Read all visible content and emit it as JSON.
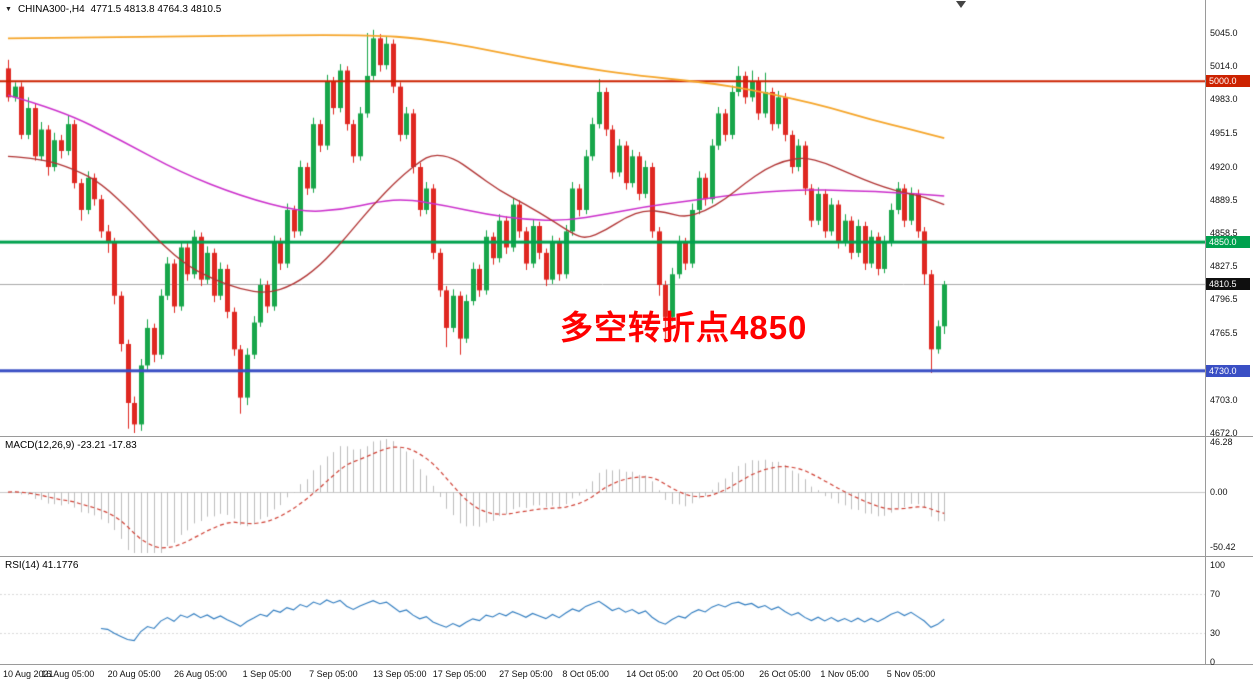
{
  "header": {
    "symbol_period": "CHINA300-,H4",
    "ohlc": "4771.5 4813.8 4764.3 4810.5",
    "open": "4771.5",
    "high": "4813.8",
    "low": "4764.3",
    "close": "4810.5"
  },
  "annotation": {
    "text": "多空转折点4850",
    "color": "#ff0000"
  },
  "colors": {
    "background": "#ffffff",
    "up": "#17a64a",
    "down": "#df2721",
    "macd_hist": "#bdbdbd",
    "macd_signal": "#cf3f33",
    "rsi_line": "#2e7bbf",
    "separator": "#9a9a9a",
    "axis_text": "#111111"
  },
  "chart_data": {
    "type": "candlestick",
    "symbol": "CHINA300-",
    "period": "H4",
    "title": "CHINA300- H4 candlestick chart with MACD and RSI",
    "main_axis": {
      "price_top": 5045.0,
      "price_bottom": 4672.0,
      "ticks": [
        {
          "v": 5045.0,
          "label": "5045.0"
        },
        {
          "v": 5014.0,
          "label": "5014.0"
        },
        {
          "v": 4983.0,
          "label": "4983.0"
        },
        {
          "v": 4951.5,
          "label": "4951.5"
        },
        {
          "v": 4920.0,
          "label": "4920.0"
        },
        {
          "v": 4889.5,
          "label": "4889.5"
        },
        {
          "v": 4858.5,
          "label": "4858.5"
        },
        {
          "v": 4827.5,
          "label": "4827.5"
        },
        {
          "v": 4796.5,
          "label": "4796.5"
        },
        {
          "v": 4765.5,
          "label": "4765.5"
        },
        {
          "v": 4703.0,
          "label": "4703.0"
        },
        {
          "v": 4672.0,
          "label": "4672.0"
        }
      ]
    },
    "hlines": [
      {
        "price": 5000.0,
        "label": "5000.0",
        "color": "#cc2200",
        "width": 2
      },
      {
        "price": 4850.0,
        "label": "4850.0",
        "color": "#00a14e",
        "width": 3
      },
      {
        "price": 4730.0,
        "label": "4730.0",
        "color": "#3a4fc4",
        "width": 3
      }
    ],
    "current_price": {
      "value": 4810.5,
      "label": "4810.5",
      "line_color": "#a8a8a8",
      "badge_bg": "#0f0f0f"
    },
    "x_labels": [
      {
        "label": "10 Aug 2021",
        "i": 0
      },
      {
        "label": "16 Aug 05:00",
        "i": 9
      },
      {
        "label": "20 Aug 05:00",
        "i": 19
      },
      {
        "label": "26 Aug 05:00",
        "i": 29
      },
      {
        "label": "1 Sep 05:00",
        "i": 39
      },
      {
        "label": "7 Sep 05:00",
        "i": 49
      },
      {
        "label": "13 Sep 05:00",
        "i": 59
      },
      {
        "label": "17 Sep 05:00",
        "i": 68
      },
      {
        "label": "27 Sep 05:00",
        "i": 78
      },
      {
        "label": "8 Oct 05:00",
        "i": 87
      },
      {
        "label": "14 Oct 05:00",
        "i": 97
      },
      {
        "label": "20 Oct 05:00",
        "i": 107
      },
      {
        "label": "26 Oct 05:00",
        "i": 117
      },
      {
        "label": "1 Nov 05:00",
        "i": 126
      },
      {
        "label": "5 Nov 05:00",
        "i": 136
      }
    ],
    "candles": [
      [
        5012,
        5020,
        4981,
        4985
      ],
      [
        4985,
        4999,
        4981,
        4995
      ],
      [
        4995,
        4999,
        4946,
        4950
      ],
      [
        4950,
        4985,
        4946,
        4975
      ],
      [
        4975,
        4979,
        4926,
        4930
      ],
      [
        4930,
        4962,
        4926,
        4955
      ],
      [
        4955,
        4959,
        4912,
        4920
      ],
      [
        4920,
        4952,
        4916,
        4945
      ],
      [
        4945,
        4950,
        4928,
        4935
      ],
      [
        4935,
        4968,
        4931,
        4960
      ],
      [
        4960,
        4964,
        4900,
        4905
      ],
      [
        4905,
        4909,
        4870,
        4880
      ],
      [
        4880,
        4916,
        4876,
        4910
      ],
      [
        4910,
        4914,
        4884,
        4890
      ],
      [
        4890,
        4894,
        4854,
        4860
      ],
      [
        4860,
        4866,
        4840,
        4850
      ],
      [
        4850,
        4854,
        4792,
        4800
      ],
      [
        4800,
        4804,
        4748,
        4755
      ],
      [
        4755,
        4759,
        4676,
        4700
      ],
      [
        4700,
        4706,
        4672,
        4680
      ],
      [
        4680,
        4741,
        4674,
        4735
      ],
      [
        4735,
        4778,
        4731,
        4770
      ],
      [
        4770,
        4774,
        4738,
        4745
      ],
      [
        4745,
        4806,
        4741,
        4800
      ],
      [
        4800,
        4836,
        4796,
        4830
      ],
      [
        4830,
        4834,
        4784,
        4790
      ],
      [
        4790,
        4851,
        4786,
        4845
      ],
      [
        4845,
        4849,
        4814,
        4820
      ],
      [
        4820,
        4861,
        4816,
        4855
      ],
      [
        4855,
        4859,
        4809,
        4815
      ],
      [
        4815,
        4846,
        4811,
        4840
      ],
      [
        4840,
        4844,
        4794,
        4800
      ],
      [
        4800,
        4831,
        4796,
        4825
      ],
      [
        4825,
        4829,
        4779,
        4785
      ],
      [
        4785,
        4789,
        4744,
        4750
      ],
      [
        4750,
        4754,
        4690,
        4705
      ],
      [
        4705,
        4751,
        4698,
        4745
      ],
      [
        4745,
        4781,
        4741,
        4775
      ],
      [
        4775,
        4816,
        4771,
        4810
      ],
      [
        4810,
        4814,
        4784,
        4790
      ],
      [
        4790,
        4856,
        4786,
        4850
      ],
      [
        4850,
        4854,
        4824,
        4830
      ],
      [
        4830,
        4886,
        4826,
        4880
      ],
      [
        4880,
        4884,
        4854,
        4860
      ],
      [
        4860,
        4926,
        4856,
        4920
      ],
      [
        4920,
        4924,
        4894,
        4900
      ],
      [
        4900,
        4966,
        4896,
        4960
      ],
      [
        4960,
        4964,
        4934,
        4940
      ],
      [
        4940,
        5006,
        4936,
        5000
      ],
      [
        5000,
        5004,
        4969,
        4975
      ],
      [
        4975,
        5016,
        4971,
        5010
      ],
      [
        5010,
        5014,
        4954,
        4960
      ],
      [
        4960,
        4964,
        4924,
        4930
      ],
      [
        4930,
        4976,
        4926,
        4970
      ],
      [
        4970,
        5045,
        4966,
        5005
      ],
      [
        5005,
        5048,
        5001,
        5040
      ],
      [
        5040,
        5044,
        5009,
        5015
      ],
      [
        5015,
        5042,
        5011,
        5035
      ],
      [
        5035,
        5039,
        4989,
        4995
      ],
      [
        4995,
        4999,
        4944,
        4950
      ],
      [
        4950,
        4976,
        4946,
        4970
      ],
      [
        4970,
        4974,
        4914,
        4920
      ],
      [
        4920,
        4924,
        4874,
        4880
      ],
      [
        4880,
        4906,
        4876,
        4900
      ],
      [
        4900,
        4904,
        4834,
        4840
      ],
      [
        4840,
        4844,
        4799,
        4805
      ],
      [
        4805,
        4809,
        4752,
        4770
      ],
      [
        4770,
        4806,
        4766,
        4800
      ],
      [
        4800,
        4804,
        4745,
        4760
      ],
      [
        4760,
        4801,
        4756,
        4795
      ],
      [
        4795,
        4831,
        4791,
        4825
      ],
      [
        4825,
        4829,
        4799,
        4805
      ],
      [
        4805,
        4861,
        4801,
        4855
      ],
      [
        4855,
        4859,
        4829,
        4835
      ],
      [
        4835,
        4876,
        4831,
        4870
      ],
      [
        4870,
        4874,
        4839,
        4845
      ],
      [
        4845,
        4891,
        4841,
        4885
      ],
      [
        4885,
        4889,
        4854,
        4860
      ],
      [
        4860,
        4864,
        4824,
        4830
      ],
      [
        4830,
        4871,
        4826,
        4865
      ],
      [
        4865,
        4869,
        4834,
        4840
      ],
      [
        4840,
        4844,
        4809,
        4815
      ],
      [
        4815,
        4856,
        4811,
        4850
      ],
      [
        4850,
        4854,
        4814,
        4820
      ],
      [
        4820,
        4866,
        4816,
        4860
      ],
      [
        4860,
        4906,
        4856,
        4900
      ],
      [
        4900,
        4904,
        4874,
        4880
      ],
      [
        4880,
        4936,
        4876,
        4930
      ],
      [
        4930,
        4966,
        4926,
        4960
      ],
      [
        4960,
        5002,
        4956,
        4990
      ],
      [
        4990,
        4994,
        4949,
        4955
      ],
      [
        4955,
        4959,
        4909,
        4915
      ],
      [
        4915,
        4946,
        4911,
        4940
      ],
      [
        4940,
        4944,
        4899,
        4905
      ],
      [
        4905,
        4936,
        4901,
        4930
      ],
      [
        4930,
        4934,
        4889,
        4895
      ],
      [
        4895,
        4926,
        4891,
        4920
      ],
      [
        4920,
        4924,
        4854,
        4860
      ],
      [
        4860,
        4864,
        4800,
        4810
      ],
      [
        4810,
        4814,
        4757,
        4780
      ],
      [
        4780,
        4826,
        4776,
        4820
      ],
      [
        4820,
        4856,
        4816,
        4850
      ],
      [
        4850,
        4854,
        4824,
        4830
      ],
      [
        4830,
        4886,
        4826,
        4880
      ],
      [
        4880,
        4916,
        4876,
        4910
      ],
      [
        4910,
        4914,
        4884,
        4890
      ],
      [
        4890,
        4946,
        4886,
        4940
      ],
      [
        4940,
        4976,
        4936,
        4970
      ],
      [
        4970,
        4974,
        4944,
        4950
      ],
      [
        4950,
        4996,
        4946,
        4990
      ],
      [
        4990,
        5014,
        4986,
        5005
      ],
      [
        5005,
        5009,
        4979,
        4985
      ],
      [
        4985,
        5010,
        4981,
        5000
      ],
      [
        5000,
        5004,
        4964,
        4970
      ],
      [
        4970,
        5008,
        4966,
        4990
      ],
      [
        4990,
        4994,
        4954,
        4960
      ],
      [
        4960,
        4991,
        4956,
        4985
      ],
      [
        4985,
        4989,
        4944,
        4950
      ],
      [
        4950,
        4954,
        4914,
        4920
      ],
      [
        4920,
        4946,
        4916,
        4940
      ],
      [
        4940,
        4944,
        4894,
        4900
      ],
      [
        4900,
        4904,
        4864,
        4870
      ],
      [
        4870,
        4901,
        4866,
        4895
      ],
      [
        4895,
        4899,
        4854,
        4860
      ],
      [
        4860,
        4891,
        4856,
        4885
      ],
      [
        4885,
        4889,
        4844,
        4850
      ],
      [
        4850,
        4876,
        4846,
        4870
      ],
      [
        4870,
        4874,
        4834,
        4840
      ],
      [
        4840,
        4871,
        4836,
        4865
      ],
      [
        4865,
        4869,
        4824,
        4830
      ],
      [
        4830,
        4861,
        4826,
        4855
      ],
      [
        4855,
        4859,
        4819,
        4825
      ],
      [
        4825,
        4856,
        4821,
        4850
      ],
      [
        4850,
        4886,
        4846,
        4880
      ],
      [
        4880,
        4906,
        4876,
        4900
      ],
      [
        4900,
        4904,
        4864,
        4870
      ],
      [
        4870,
        4901,
        4866,
        4895
      ],
      [
        4895,
        4899,
        4854,
        4860
      ],
      [
        4860,
        4864,
        4810,
        4820
      ],
      [
        4820,
        4824,
        4728,
        4750
      ],
      [
        4750,
        4777,
        4746,
        4771.5
      ],
      [
        4771.5,
        4813.8,
        4764.3,
        4810.5
      ]
    ],
    "moving_averages": [
      {
        "name": "ma-slow",
        "color": "#f5a52a",
        "width": 1.8,
        "points": [
          [
            0,
            5040
          ],
          [
            20,
            5041
          ],
          [
            40,
            5043
          ],
          [
            55,
            5043
          ],
          [
            62,
            5040
          ],
          [
            70,
            5032
          ],
          [
            78,
            5022
          ],
          [
            86,
            5013
          ],
          [
            94,
            5006
          ],
          [
            100,
            5002
          ],
          [
            106,
            4998
          ],
          [
            112,
            4992
          ],
          [
            118,
            4984
          ],
          [
            124,
            4975
          ],
          [
            130,
            4964
          ],
          [
            136,
            4955
          ],
          [
            141,
            4947
          ]
        ]
      },
      {
        "name": "ma-medium",
        "color": "#cb2ecb",
        "width": 1.5,
        "points": [
          [
            0,
            4987
          ],
          [
            8,
            4973
          ],
          [
            17,
            4945
          ],
          [
            26,
            4915
          ],
          [
            35,
            4893
          ],
          [
            44,
            4878
          ],
          [
            50,
            4880
          ],
          [
            56,
            4888
          ],
          [
            60,
            4890
          ],
          [
            66,
            4884
          ],
          [
            72,
            4876
          ],
          [
            78,
            4871
          ],
          [
            84,
            4870
          ],
          [
            90,
            4876
          ],
          [
            96,
            4883
          ],
          [
            102,
            4888
          ],
          [
            108,
            4893
          ],
          [
            114,
            4897
          ],
          [
            120,
            4899
          ],
          [
            126,
            4898
          ],
          [
            132,
            4897
          ],
          [
            141,
            4893
          ]
        ]
      },
      {
        "name": "ma-fast",
        "color": "#b03333",
        "width": 1.3,
        "points": [
          [
            0,
            4930
          ],
          [
            5,
            4928
          ],
          [
            10,
            4918
          ],
          [
            14,
            4905
          ],
          [
            19,
            4876
          ],
          [
            23,
            4849
          ],
          [
            27,
            4828
          ],
          [
            31,
            4815
          ],
          [
            35,
            4806
          ],
          [
            39,
            4802
          ],
          [
            43,
            4810
          ],
          [
            47,
            4828
          ],
          [
            51,
            4855
          ],
          [
            55,
            4885
          ],
          [
            59,
            4910
          ],
          [
            62,
            4925
          ],
          [
            64,
            4932
          ],
          [
            67,
            4929
          ],
          [
            70,
            4916
          ],
          [
            74,
            4898
          ],
          [
            78,
            4885
          ],
          [
            82,
            4870
          ],
          [
            85,
            4858
          ],
          [
            87,
            4853
          ],
          [
            90,
            4861
          ],
          [
            93,
            4873
          ],
          [
            96,
            4880
          ],
          [
            99,
            4878
          ],
          [
            102,
            4873
          ],
          [
            105,
            4879
          ],
          [
            108,
            4890
          ],
          [
            111,
            4905
          ],
          [
            114,
            4918
          ],
          [
            117,
            4926
          ],
          [
            120,
            4929
          ],
          [
            123,
            4924
          ],
          [
            126,
            4916
          ],
          [
            129,
            4908
          ],
          [
            132,
            4901
          ],
          [
            135,
            4896
          ],
          [
            138,
            4892
          ],
          [
            141,
            4885
          ]
        ]
      }
    ],
    "macd": {
      "label": "MACD(12,26,9) -23.21 -17.83",
      "params": [
        12,
        26,
        9
      ],
      "value": -23.21,
      "signal_value": -17.83,
      "max": 46.28,
      "min": -50.42,
      "ticks": [
        {
          "v": 46.28,
          "label": "46.28"
        },
        {
          "v": 0.0,
          "label": "0.00"
        },
        {
          "v": -50.42,
          "label": "-50.42"
        }
      ]
    },
    "rsi": {
      "label": "RSI(14) 41.1776",
      "period": 14,
      "value": 41.1776,
      "levels": [
        70,
        30
      ],
      "ticks": [
        {
          "v": 100,
          "label": "100"
        },
        {
          "v": 70,
          "label": "70"
        },
        {
          "v": 30,
          "label": "30"
        },
        {
          "v": 0,
          "label": "0"
        }
      ]
    }
  }
}
